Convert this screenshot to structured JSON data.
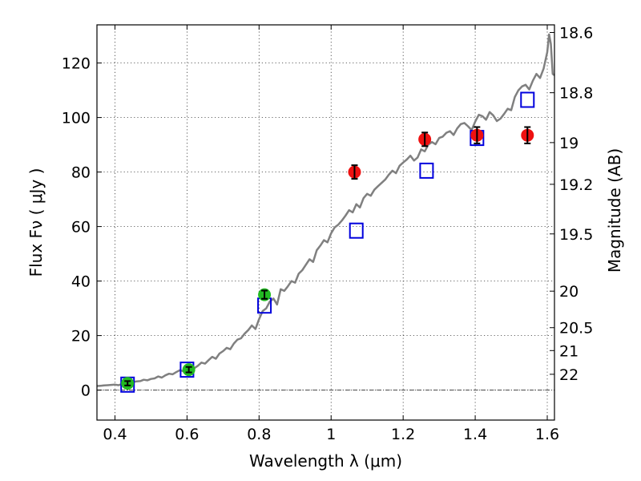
{
  "chart_data": {
    "type": "scatter",
    "xlabel": "Wavelength  λ (μm)",
    "ylabel": "Flux  Fν  ( μJy )",
    "ylabel_right": "Magnitude (AB)",
    "xlim": [
      0.35,
      1.62
    ],
    "ylim": [
      -11,
      134
    ],
    "grid": true,
    "zero_line": 0,
    "x_ticks": [
      0.4,
      0.6,
      0.8,
      1.0,
      1.2,
      1.4,
      1.6
    ],
    "x_tick_labels": [
      "0.4",
      "0.6",
      "0.8",
      "1",
      "1.2",
      "1.4",
      "1.6"
    ],
    "y_ticks": [
      0,
      20,
      40,
      60,
      80,
      100,
      120
    ],
    "y_tick_labels": [
      "0",
      "20",
      "40",
      "60",
      "80",
      "100",
      "120"
    ],
    "mag_ticks": [
      {
        "label": "18.6",
        "flux": 131.2
      },
      {
        "label": "18.8",
        "flux": 109.1
      },
      {
        "label": "19",
        "flux": 90.8
      },
      {
        "label": "19.2",
        "flux": 75.5
      },
      {
        "label": "19.5",
        "flux": 57.3
      },
      {
        "label": "20",
        "flux": 36.3
      },
      {
        "label": "20.5",
        "flux": 22.9
      },
      {
        "label": "21",
        "flux": 14.5
      },
      {
        "label": "22",
        "flux": 5.8
      }
    ],
    "series": [
      {
        "kind": "line",
        "color": "#808080",
        "x": [
          0.35,
          0.36,
          0.37,
          0.38,
          0.39,
          0.4,
          0.41,
          0.42,
          0.43,
          0.44,
          0.45,
          0.46,
          0.47,
          0.48,
          0.49,
          0.5,
          0.51,
          0.52,
          0.53,
          0.54,
          0.55,
          0.56,
          0.57,
          0.58,
          0.59,
          0.6,
          0.61,
          0.62,
          0.63,
          0.64,
          0.65,
          0.66,
          0.67,
          0.68,
          0.69,
          0.7,
          0.71,
          0.72,
          0.73,
          0.74,
          0.75,
          0.76,
          0.77,
          0.78,
          0.79,
          0.8,
          0.81,
          0.82,
          0.83,
          0.84,
          0.85,
          0.86,
          0.87,
          0.88,
          0.89,
          0.9,
          0.91,
          0.92,
          0.93,
          0.94,
          0.95,
          0.96,
          0.97,
          0.98,
          0.99,
          1.0,
          1.01,
          1.02,
          1.03,
          1.04,
          1.05,
          1.06,
          1.07,
          1.08,
          1.09,
          1.1,
          1.11,
          1.12,
          1.13,
          1.14,
          1.15,
          1.16,
          1.17,
          1.18,
          1.19,
          1.2,
          1.21,
          1.22,
          1.23,
          1.24,
          1.25,
          1.26,
          1.27,
          1.28,
          1.29,
          1.3,
          1.31,
          1.32,
          1.33,
          1.34,
          1.35,
          1.36,
          1.37,
          1.38,
          1.39,
          1.4,
          1.41,
          1.42,
          1.43,
          1.44,
          1.45,
          1.46,
          1.47,
          1.48,
          1.49,
          1.5,
          1.51,
          1.52,
          1.53,
          1.54,
          1.55,
          1.56,
          1.57,
          1.58,
          1.59,
          1.6,
          1.605,
          1.61,
          1.615,
          1.62
        ],
        "y": [
          1.5,
          1.6,
          1.7,
          1.8,
          1.9,
          2.0,
          1.8,
          2.3,
          2.1,
          2.6,
          2.9,
          3.2,
          3.3,
          3.8,
          3.6,
          4.1,
          4.3,
          5.0,
          4.6,
          5.4,
          6.0,
          5.8,
          6.6,
          7.3,
          6.9,
          7.6,
          8.2,
          8.0,
          8.9,
          10.1,
          9.7,
          11.0,
          12.2,
          11.5,
          13.4,
          14.3,
          15.5,
          15.0,
          17.1,
          18.5,
          19.0,
          20.7,
          22.0,
          23.7,
          22.4,
          26.0,
          29.0,
          30.0,
          32.5,
          33.6,
          31.4,
          37.0,
          36.4,
          38.1,
          40.0,
          39.4,
          42.7,
          44.0,
          46.0,
          48.0,
          47.0,
          51.3,
          53.0,
          55.0,
          54.2,
          57.5,
          59.7,
          60.7,
          62.2,
          64.0,
          66.0,
          65.2,
          68.2,
          67.0,
          70.4,
          72.0,
          71.3,
          73.5,
          74.8,
          76.0,
          77.2,
          79.0,
          80.5,
          79.6,
          82.3,
          83.5,
          84.6,
          86.0,
          84.2,
          85.3,
          88.3,
          87.6,
          90.1,
          91.0,
          90.2,
          92.5,
          93.0,
          94.4,
          95.0,
          93.6,
          96.0,
          97.6,
          98.0,
          96.8,
          95.4,
          98.5,
          101.0,
          100.5,
          99.2,
          102.0,
          100.8,
          98.7,
          99.6,
          101.3,
          103.2,
          102.7,
          107.5,
          110.0,
          111.4,
          112.0,
          110.3,
          113.5,
          116.0,
          114.5,
          118.0,
          124.0,
          130.5,
          127.0,
          116.0,
          115.5
        ]
      },
      {
        "kind": "open-square",
        "color": "#0000dd",
        "x": [
          0.435,
          0.6,
          0.815,
          1.07,
          1.265,
          1.405,
          1.545
        ],
        "y": [
          2.0,
          7.5,
          31.0,
          58.5,
          80.5,
          92.5,
          106.5
        ]
      },
      {
        "kind": "point",
        "color": "#22bb22",
        "x": [
          0.435,
          0.605,
          0.815
        ],
        "y": [
          2.5,
          7.5,
          35.0
        ],
        "yerr": [
          0.8,
          1.0,
          1.5
        ]
      },
      {
        "kind": "point",
        "color": "#ee1111",
        "x": [
          1.065,
          1.26,
          1.405,
          1.545
        ],
        "y": [
          80.0,
          92.0,
          93.5,
          93.5
        ],
        "yerr": [
          2.5,
          2.5,
          3.0,
          3.0
        ]
      }
    ]
  }
}
